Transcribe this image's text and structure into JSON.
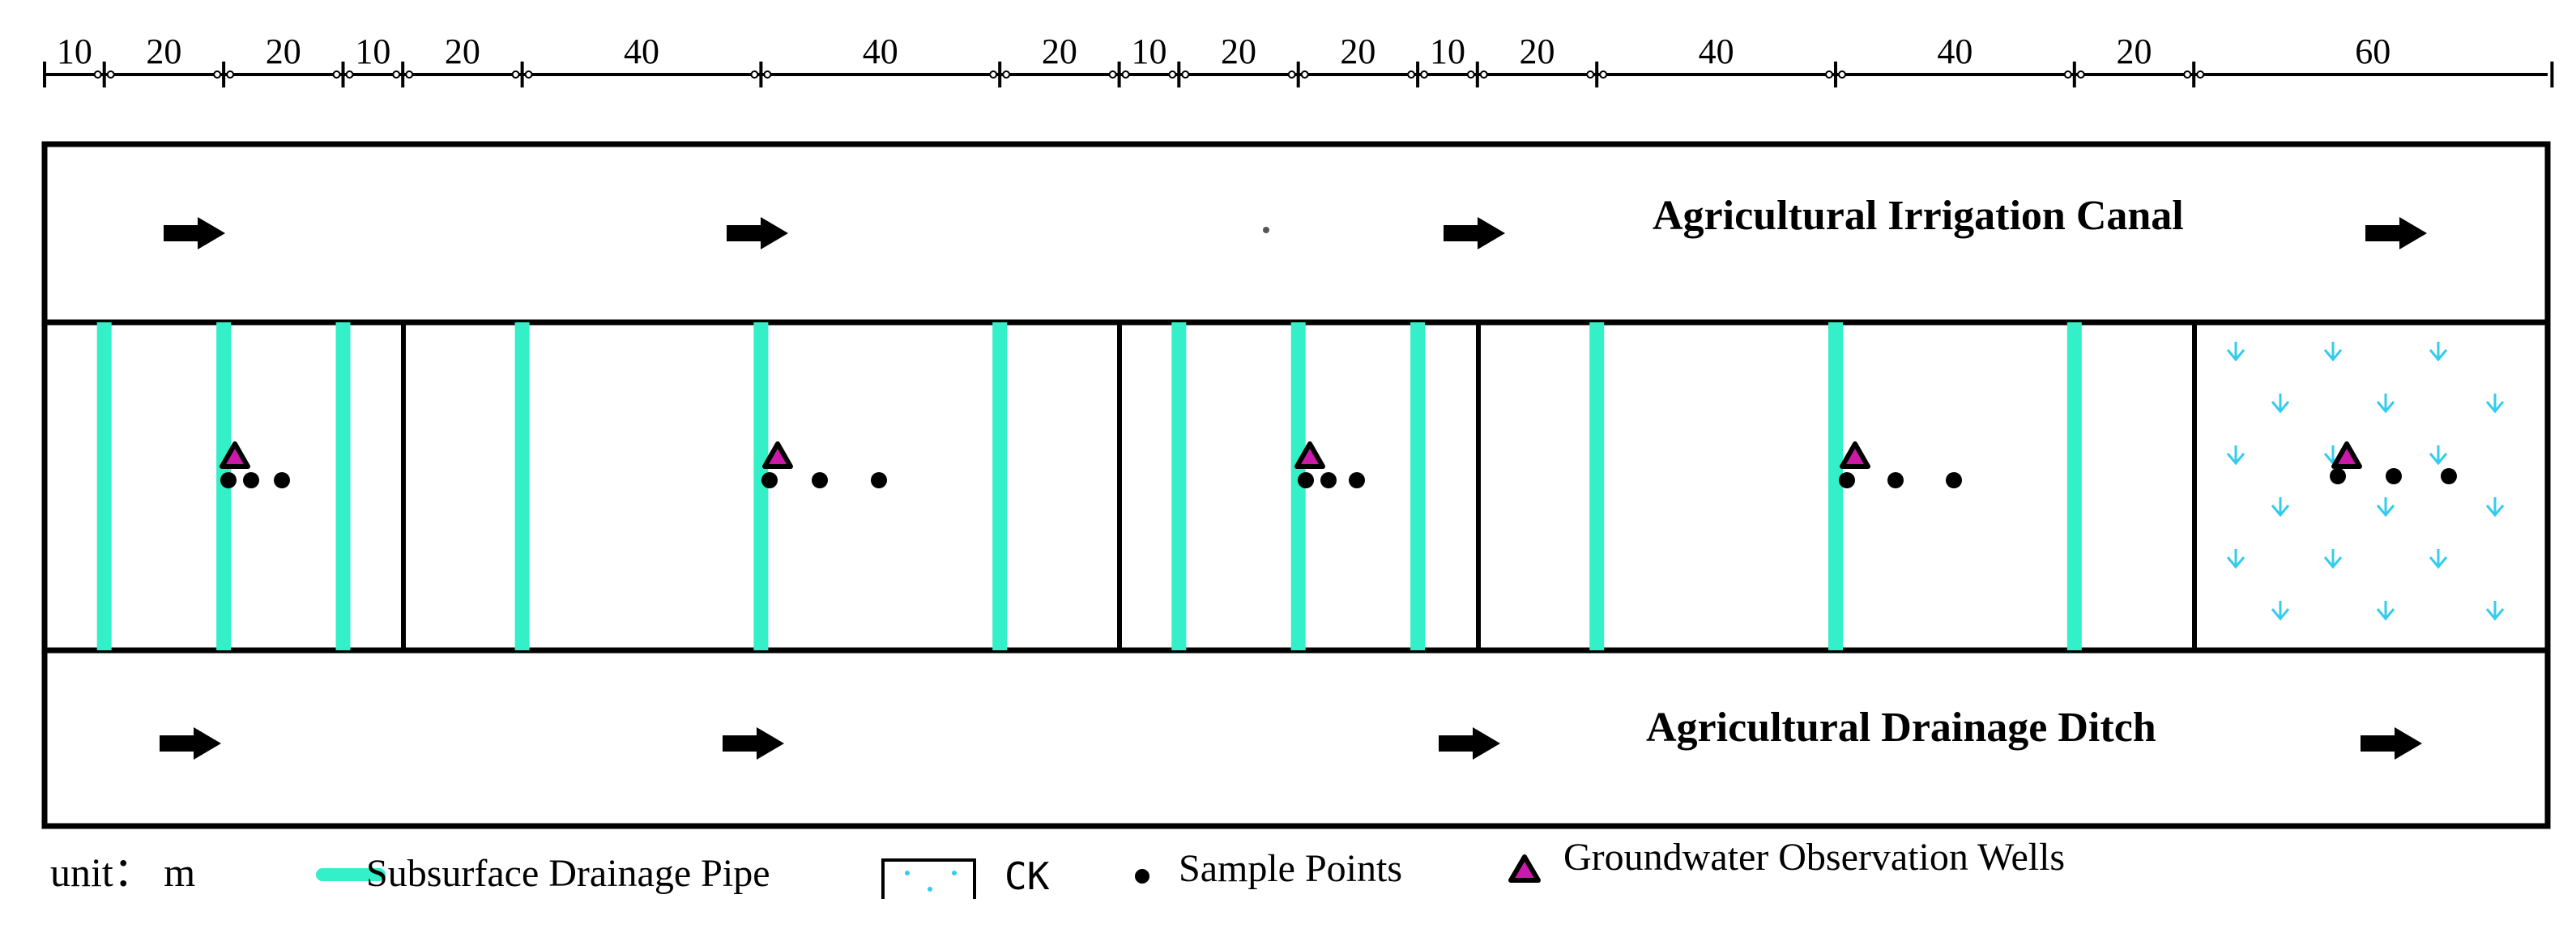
{
  "scale": {
    "segments": [
      {
        "label": "10"
      },
      {
        "label": "20"
      },
      {
        "label": "20"
      },
      {
        "label": "10"
      },
      {
        "label": "20"
      },
      {
        "label": "40"
      },
      {
        "label": "40"
      },
      {
        "label": "20"
      },
      {
        "label": "10"
      },
      {
        "label": "20"
      },
      {
        "label": "20"
      },
      {
        "label": "10"
      },
      {
        "label": "20"
      },
      {
        "label": "40"
      },
      {
        "label": "40"
      },
      {
        "label": "20"
      },
      {
        "label": "60"
      }
    ]
  },
  "canal": {
    "label": "Agricultural Irrigation Canal"
  },
  "ditch": {
    "label": "Agricultural Drainage Ditch"
  },
  "legend": {
    "unit": "unit： m",
    "pipe": "Subsurface Drainage Pipe",
    "ck": "CK",
    "sample": "Sample Points",
    "well": "Groundwater Observation Wells"
  },
  "colors": {
    "pipe": "#33f0c8",
    "ck_symbol": "#33ccee",
    "well_fill": "#cc1aa8",
    "line": "#000000"
  }
}
